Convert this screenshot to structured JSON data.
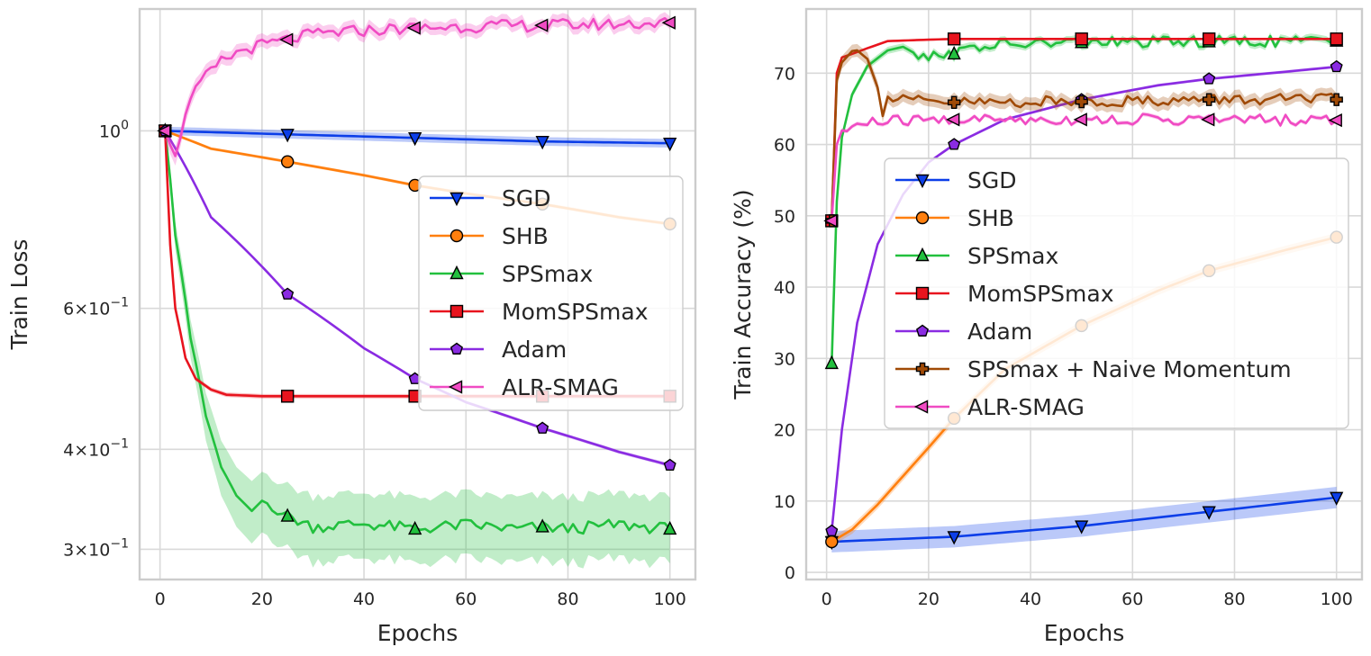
{
  "chart_data": [
    {
      "type": "line",
      "xlabel": "Epochs",
      "ylabel": "Train Loss",
      "yscale": "log",
      "xlim": [
        -4,
        105
      ],
      "ylim": [
        0.275,
        1.42
      ],
      "xticks": [
        0,
        20,
        40,
        60,
        80,
        100
      ],
      "yticks": [
        {
          "value": 1.0,
          "base": "10",
          "exp": "0",
          "coef": ""
        },
        {
          "value": 0.6,
          "base": "10",
          "exp": "−1",
          "coef": "6×"
        },
        {
          "value": 0.4,
          "base": "10",
          "exp": "−1",
          "coef": "4×"
        },
        {
          "value": 0.3,
          "base": "10",
          "exp": "−1",
          "coef": "3×"
        }
      ],
      "grid": true,
      "legend": "center-right",
      "series": [
        {
          "name": "SGD",
          "color": "#0c3ee8",
          "marker": "triangle-down",
          "x": [
            1,
            25,
            50,
            75,
            100
          ],
          "y": [
            1.0,
            0.99,
            0.98,
            0.97,
            0.965
          ],
          "band": 0.012
        },
        {
          "name": "SHB",
          "color": "#ff7f0e",
          "marker": "circle",
          "x": [
            1,
            10,
            25,
            40,
            50,
            60,
            75,
            90,
            100
          ],
          "y": [
            1.0,
            0.95,
            0.915,
            0.88,
            0.855,
            0.835,
            0.81,
            0.78,
            0.765
          ],
          "band": 0.004
        },
        {
          "name": "SPSmax",
          "color": "#22c03e",
          "marker": "triangle-up",
          "x": [
            1,
            3,
            6,
            9,
            12,
            15,
            18,
            20,
            22,
            25,
            30,
            40,
            50,
            60,
            70,
            75,
            80,
            90,
            100
          ],
          "y": [
            1.0,
            0.74,
            0.55,
            0.44,
            0.38,
            0.35,
            0.335,
            0.345,
            0.34,
            0.33,
            0.32,
            0.323,
            0.318,
            0.322,
            0.318,
            0.32,
            0.318,
            0.322,
            0.318
          ],
          "band": 0.03,
          "noisy_from": 22
        },
        {
          "name": "MomSPSmax",
          "color": "#e8141e",
          "marker": "square",
          "x": [
            1,
            2,
            3,
            5,
            7,
            10,
            13,
            20,
            25,
            50,
            75,
            100
          ],
          "y": [
            1.0,
            0.72,
            0.6,
            0.52,
            0.49,
            0.475,
            0.468,
            0.466,
            0.466,
            0.466,
            0.466,
            0.466
          ],
          "band": 0.003
        },
        {
          "name": "Adam",
          "color": "#8a2be2",
          "marker": "pentagon",
          "x": [
            1,
            10,
            25,
            40,
            50,
            60,
            75,
            90,
            100
          ],
          "y": [
            1.0,
            0.78,
            0.625,
            0.535,
            0.49,
            0.458,
            0.425,
            0.397,
            0.382
          ],
          "band": 0.002
        },
        {
          "name": "ALR-SMAG",
          "color": "#f04bc3",
          "marker": "triangle-left",
          "x": [
            1,
            3,
            5,
            8,
            12,
            16,
            20,
            25,
            30,
            40,
            50,
            60,
            75,
            90,
            100
          ],
          "y": [
            1.0,
            0.92,
            1.06,
            1.15,
            1.22,
            1.26,
            1.28,
            1.3,
            1.32,
            1.335,
            1.345,
            1.35,
            1.355,
            1.36,
            1.365
          ],
          "band": 0.025,
          "noisy_from": 3
        }
      ]
    },
    {
      "type": "line",
      "xlabel": "Epochs",
      "ylabel": "Train Accuracy (%)",
      "yscale": "linear",
      "xlim": [
        -4,
        105
      ],
      "ylim": [
        -1,
        79
      ],
      "xticks": [
        0,
        20,
        40,
        60,
        80,
        100
      ],
      "yticks": [
        0,
        10,
        20,
        30,
        40,
        50,
        60,
        70
      ],
      "grid": true,
      "legend": "center",
      "series": [
        {
          "name": "SGD",
          "color": "#0c3ee8",
          "marker": "triangle-down",
          "x": [
            1,
            25,
            50,
            75,
            100
          ],
          "y": [
            4.3,
            5.0,
            6.5,
            8.5,
            10.5
          ],
          "band": 1.5
        },
        {
          "name": "SHB",
          "color": "#ff7f0e",
          "marker": "circle",
          "x": [
            1,
            5,
            10,
            15,
            20,
            25,
            35,
            50,
            65,
            75,
            90,
            100
          ],
          "y": [
            4.3,
            6.0,
            9.5,
            13.5,
            17.5,
            21.6,
            28.5,
            34.6,
            39.5,
            42.3,
            45.2,
            47.0
          ],
          "band": 0.6
        },
        {
          "name": "SPSmax",
          "color": "#22c03e",
          "marker": "triangle-up",
          "x": [
            1,
            2,
            3,
            5,
            8,
            12,
            15,
            18,
            20,
            22,
            25,
            30,
            40,
            50,
            60,
            75,
            90,
            100
          ],
          "y": [
            29.3,
            52,
            61,
            67,
            71,
            73.2,
            73.7,
            72.5,
            71.8,
            73.0,
            72.7,
            73.8,
            74.1,
            74.3,
            74.3,
            74.4,
            74.5,
            74.5
          ],
          "band": 0.5,
          "noisy_from": 18
        },
        {
          "name": "MomSPSmax",
          "color": "#e8141e",
          "marker": "square",
          "x": [
            1,
            2,
            3,
            5,
            8,
            12,
            20,
            25,
            50,
            75,
            100
          ],
          "y": [
            49.3,
            70,
            72.2,
            72.7,
            73.5,
            74.5,
            74.7,
            74.8,
            74.8,
            74.8,
            74.8
          ],
          "band": 0.1
        },
        {
          "name": "Adam",
          "color": "#8a2be2",
          "marker": "pentagon",
          "x": [
            1,
            3,
            6,
            10,
            15,
            20,
            25,
            35,
            50,
            65,
            75,
            90,
            100
          ],
          "y": [
            5.8,
            20,
            35,
            46,
            53,
            57.5,
            60.0,
            63.5,
            66.3,
            68.3,
            69.2,
            70.2,
            70.9
          ],
          "band": 0.2
        },
        {
          "name": "SPSmax + Naive Momentum",
          "color": "#a04a06",
          "marker": "plus",
          "x": [
            1,
            2,
            3,
            5,
            6,
            8,
            10,
            11,
            12,
            15,
            20,
            25,
            50,
            75,
            100
          ],
          "y": [
            49.3,
            69,
            71.5,
            73.1,
            73.2,
            72,
            68,
            64,
            66.5,
            66.2,
            66.0,
            65.9,
            66.0,
            66.3,
            66.3
          ],
          "band": 0.9,
          "noisy_from": 12
        },
        {
          "name": "ALR-SMAG",
          "color": "#f04bc3",
          "marker": "triangle-left",
          "x": [
            1,
            2,
            3,
            5,
            8,
            12,
            20,
            25,
            50,
            75,
            100
          ],
          "y": [
            49.3,
            60,
            61.8,
            62.5,
            63.0,
            63.3,
            63.4,
            63.5,
            63.5,
            63.5,
            63.4
          ],
          "band": 0.3,
          "noisy_from": 3
        }
      ]
    }
  ]
}
